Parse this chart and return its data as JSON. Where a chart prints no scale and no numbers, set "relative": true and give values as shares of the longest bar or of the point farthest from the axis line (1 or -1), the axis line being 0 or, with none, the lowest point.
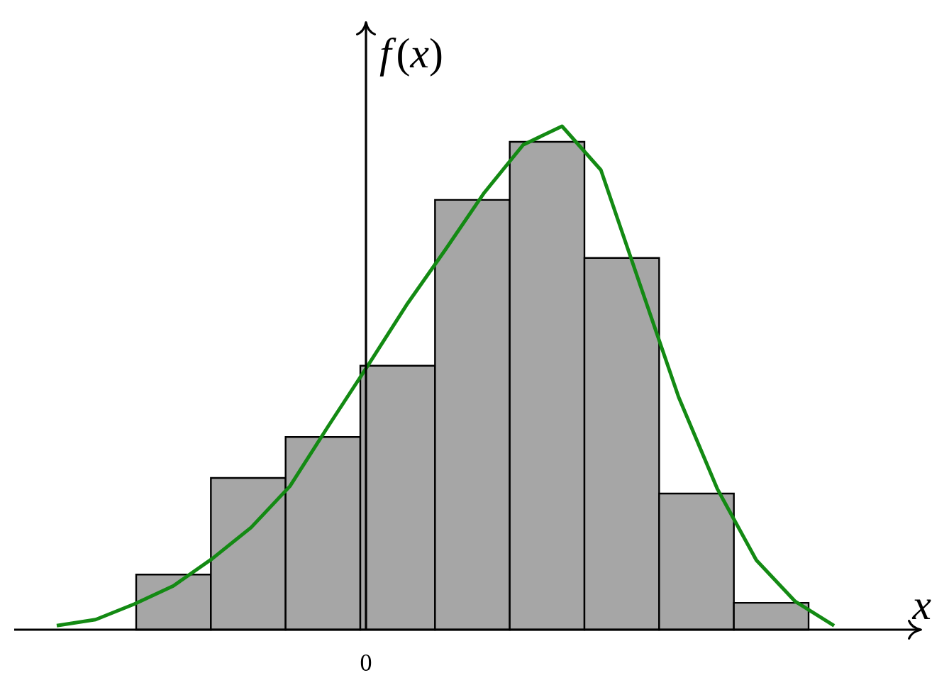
{
  "chart_data": [
    {
      "type": "bar",
      "relative": true,
      "xlabel": "x",
      "ylabel": "*f*(*x*)",
      "annotations": [
        "0"
      ],
      "categories": [
        null,
        null,
        null,
        null,
        null,
        null,
        null,
        null,
        null
      ],
      "series": [
        {
          "color": "#a6a6a6",
          "values": [
            0.113,
            0.311,
            0.395,
            0.541,
            0.881,
            1,
            0.762,
            0.279,
            0.055
          ]
        }
      ]
    },
    {
      "type": "line",
      "relative": true,
      "categories": [
        null,
        null,
        null,
        null,
        null,
        null,
        null,
        null,
        null,
        null,
        null,
        null,
        null,
        null,
        null,
        null,
        null,
        null,
        null,
        null,
        null
      ],
      "series": [
        {
          "color": "#138a13",
          "values": [
            0.008,
            0.02,
            0.051,
            0.087,
            0.141,
            0.203,
            0.285,
            0.406,
            0.524,
            0.645,
            0.755,
            0.868,
            0.963,
            1.0,
            0.913,
            0.687,
            0.462,
            0.279,
            0.138,
            0.056,
            0.008
          ]
        }
      ]
    }
  ]
}
